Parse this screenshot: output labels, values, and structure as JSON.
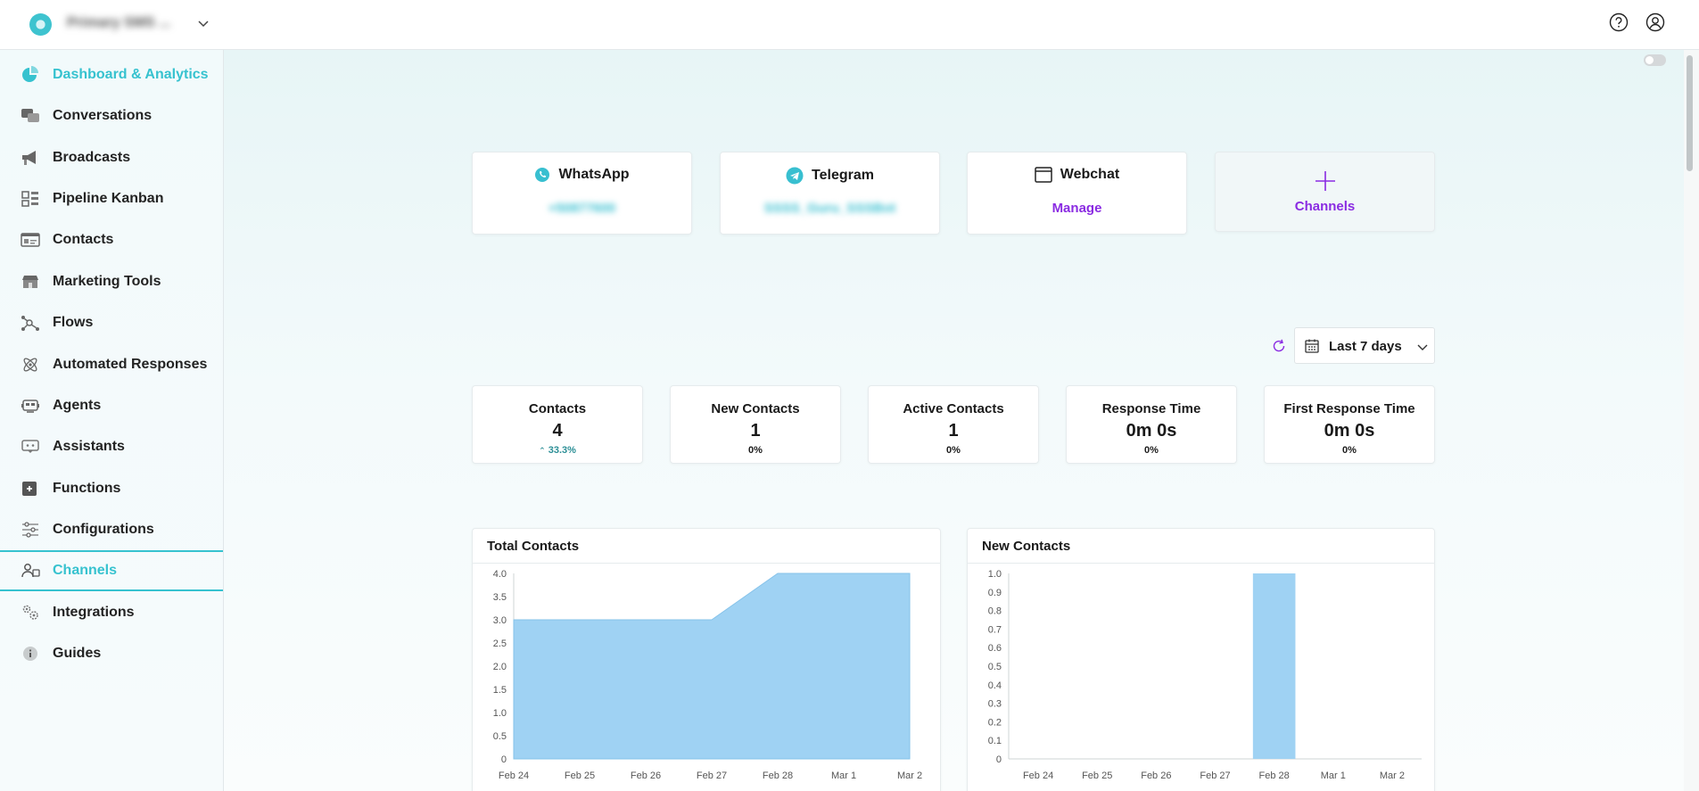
{
  "header": {
    "org_name": "Primary SMS ...",
    "icons": [
      "help-icon",
      "account-icon"
    ]
  },
  "sidebar": {
    "items": [
      {
        "label": "Dashboard & Analytics",
        "icon": "pie-chart-icon"
      },
      {
        "label": "Conversations",
        "icon": "chat-bubbles-icon"
      },
      {
        "label": "Broadcasts",
        "icon": "megaphone-icon"
      },
      {
        "label": "Pipeline Kanban",
        "icon": "kanban-icon"
      },
      {
        "label": "Contacts",
        "icon": "contact-card-icon"
      },
      {
        "label": "Marketing Tools",
        "icon": "store-icon"
      },
      {
        "label": "Flows",
        "icon": "flow-nodes-icon"
      },
      {
        "label": "Automated Responses",
        "icon": "atom-icon"
      },
      {
        "label": "Agents",
        "icon": "robot-icon"
      },
      {
        "label": "Assistants",
        "icon": "chat-bot-icon"
      },
      {
        "label": "Functions",
        "icon": "function-icon"
      },
      {
        "label": "Configurations",
        "icon": "sliders-icon"
      },
      {
        "label": "Channels",
        "icon": "people-icon"
      },
      {
        "label": "Integrations",
        "icon": "gears-icon"
      },
      {
        "label": "Guides",
        "icon": "info-icon"
      }
    ]
  },
  "channels": {
    "whatsapp": {
      "title": "WhatsApp",
      "value": "+50877600"
    },
    "telegram": {
      "title": "Telegram",
      "value": "SSSS_Guru_SSSBot"
    },
    "webchat": {
      "title": "Webchat",
      "action": "Manage"
    },
    "add": {
      "label": "Channels"
    }
  },
  "filters": {
    "date_range": "Last 7 days"
  },
  "stats": [
    {
      "title": "Contacts",
      "value": "4",
      "change": "33.3%"
    },
    {
      "title": "New Contacts",
      "value": "1",
      "change": "0%"
    },
    {
      "title": "Active Contacts",
      "value": "1",
      "change": "0%"
    },
    {
      "title": "Response Time",
      "value": "0m 0s",
      "change": "0%"
    },
    {
      "title": "First Response Time",
      "value": "0m 0s",
      "change": "0%"
    }
  ],
  "colors": {
    "accent": "#36c2cf",
    "purple": "#8a2be2",
    "chart_fill": "#9fd2f3",
    "chart_line": "#86c3ea"
  },
  "chart_data": [
    {
      "type": "area",
      "title": "Total Contacts",
      "categories": [
        "Feb 24",
        "Feb 25",
        "Feb 26",
        "Feb 27",
        "Feb 28",
        "Mar 1",
        "Mar 2"
      ],
      "values": [
        3,
        3,
        3,
        3,
        4,
        4,
        4
      ],
      "ylim": [
        0,
        4
      ],
      "yticks": [
        "0",
        "0.5",
        "1.0",
        "1.5",
        "2.0",
        "2.5",
        "3.0",
        "3.5",
        "4.0"
      ],
      "xlabel": "",
      "ylabel": ""
    },
    {
      "type": "bar",
      "title": "New Contacts",
      "categories": [
        "Feb 24",
        "Feb 25",
        "Feb 26",
        "Feb 27",
        "Feb 28",
        "Mar 1",
        "Mar 2"
      ],
      "values": [
        0,
        0,
        0,
        0,
        1,
        0,
        0
      ],
      "ylim": [
        0,
        1
      ],
      "yticks": [
        "0",
        "0.1",
        "0.2",
        "0.3",
        "0.4",
        "0.5",
        "0.6",
        "0.7",
        "0.8",
        "0.9",
        "1.0"
      ],
      "xlabel": "",
      "ylabel": ""
    }
  ]
}
